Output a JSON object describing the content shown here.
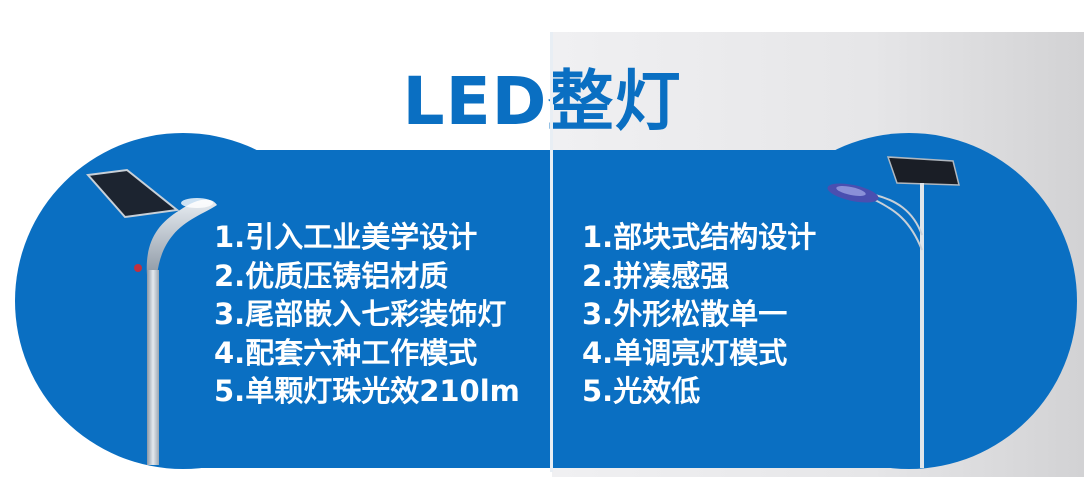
{
  "title": "LED整灯",
  "colors": {
    "brand_blue": "#0a6fc2",
    "background_gray": "#e6e6e8"
  },
  "left_panel": {
    "image": "integrated-solar-street-light",
    "features": [
      "1.引入工业美学设计",
      "2.优质压铸铝材质",
      "3.尾部嵌入七彩装饰灯",
      "4.配套六种工作模式",
      "5.单颗灯珠光效210lm"
    ]
  },
  "right_panel": {
    "image": "split-solar-street-light",
    "features": [
      "1.部块式结构设计",
      "2.拼凑感强",
      "3.外形松散单一",
      "4.单调亮灯模式",
      "5.光效低"
    ]
  }
}
